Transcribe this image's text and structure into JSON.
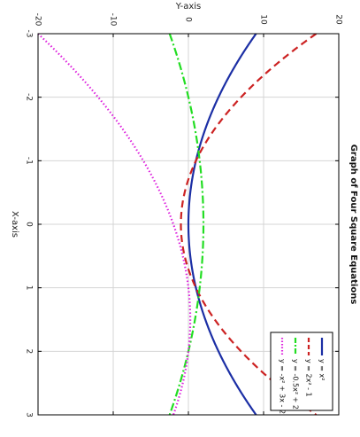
{
  "chart_data": {
    "type": "line",
    "title": "Graph of Four Square Equations",
    "xlabel": "X-axis",
    "ylabel": "Y-axis",
    "xlim": [
      -3,
      3
    ],
    "ylim": [
      -20,
      20
    ],
    "x_ticks": [
      -3,
      -2,
      -1,
      0,
      1,
      2,
      3
    ],
    "y_ticks": [
      -20,
      -10,
      0,
      10,
      20
    ],
    "grid": true,
    "legend_position": "bottom-right",
    "series": [
      {
        "name": "y = x²",
        "formula": [
          1,
          0,
          0
        ],
        "color": "#1c2fa5",
        "dash": "solid"
      },
      {
        "name": "y = 2x² - 1",
        "formula": [
          2,
          0,
          -1
        ],
        "color": "#cc2222",
        "dash": "dashed"
      },
      {
        "name": "y = -0.5x² + 2",
        "formula": [
          -0.5,
          0,
          2
        ],
        "color": "#22dd22",
        "dash": "dashdot"
      },
      {
        "name": "y = -x² + 3x - 2",
        "formula": [
          -1,
          3,
          -2
        ],
        "color": "#dd22dd",
        "dash": "dotted"
      }
    ]
  }
}
